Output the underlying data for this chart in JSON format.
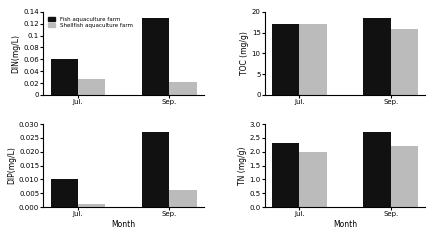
{
  "months": [
    "Jul.",
    "Sep."
  ],
  "DIN": {
    "fish": [
      0.06,
      0.13
    ],
    "shellfish": [
      0.027,
      0.022
    ],
    "ylabel": "DIN(mg/L)",
    "ylim": [
      0,
      0.14
    ],
    "yticks": [
      0.0,
      0.02,
      0.04,
      0.06,
      0.08,
      0.1,
      0.12,
      0.14
    ]
  },
  "DIP": {
    "fish": [
      0.01,
      0.027
    ],
    "shellfish": [
      0.001,
      0.006
    ],
    "ylabel": "DIP(mg/L)",
    "ylim": [
      0,
      0.03
    ],
    "yticks": [
      0.0,
      0.005,
      0.01,
      0.015,
      0.02,
      0.025,
      0.03
    ]
  },
  "TOC": {
    "fish": [
      17.0,
      18.5
    ],
    "shellfish": [
      17.0,
      16.0
    ],
    "ylabel": "TOC (mg/g)",
    "ylim": [
      0,
      20
    ],
    "yticks": [
      0,
      5,
      10,
      15,
      20
    ]
  },
  "TN": {
    "fish": [
      2.3,
      2.7
    ],
    "shellfish": [
      2.0,
      2.2
    ],
    "ylabel": "TN (mg/g)",
    "ylim": [
      0,
      3.0
    ],
    "yticks": [
      0.0,
      0.5,
      1.0,
      1.5,
      2.0,
      2.5,
      3.0
    ]
  },
  "xlabel": "Month",
  "fish_color": "#111111",
  "shellfish_color": "#bbbbbb",
  "bar_width": 0.3,
  "legend_labels": [
    "Fish aquaculture farm",
    "Shellfish aquaculture farm"
  ],
  "fontsize": 5.5,
  "tick_fontsize": 5
}
